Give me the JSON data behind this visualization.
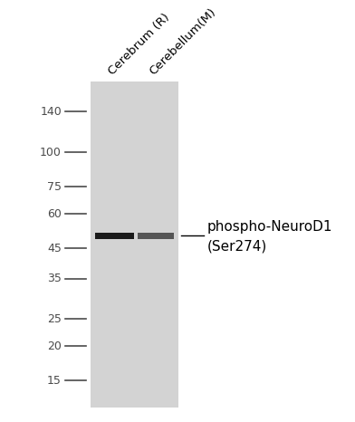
{
  "background_color": "#ffffff",
  "gel_color": "#d3d3d3",
  "figure_width": 3.92,
  "figure_height": 4.66,
  "dpi": 100,
  "marker_labels": [
    "140",
    "100",
    "75",
    "60",
    "45",
    "35",
    "25",
    "20",
    "15"
  ],
  "marker_kda": [
    140,
    100,
    75,
    60,
    45,
    35,
    25,
    20,
    15
  ],
  "band_kda": 50,
  "annotation_text_line1": "phospho-NeuroD1",
  "annotation_text_line2": "(Ser274)",
  "lane1_label": "Cerebrum (R)",
  "lane2_label": "Cerebellum(M)",
  "band_color_1": "#1a1a1a",
  "band_color_2": "#555555",
  "text_color": "#4a4a4a",
  "marker_color": "#4a4a4a",
  "font_size_markers": 9,
  "font_size_labels": 9.5,
  "font_size_annotation": 11
}
